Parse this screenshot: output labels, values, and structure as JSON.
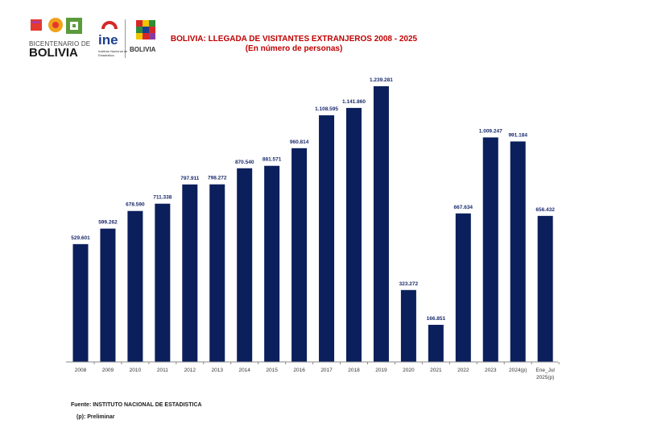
{
  "header": {
    "logo1_top": "BICENTENARIO DE",
    "logo1_bottom": "BOLIVIA",
    "logo2_name": "ine",
    "logo2_sub": "Instituto Nacional de Estadística",
    "logo3_text": "BOLIVIA"
  },
  "chart_data": {
    "type": "bar",
    "title": "BOLIVIA: LLEGADA DE VISITANTES EXTRANJEROS 2008 - 2025",
    "subtitle": "(En número de personas)",
    "categories": [
      "2008",
      "2009",
      "2010",
      "2011",
      "2012",
      "2013",
      "2014",
      "2015",
      "2016",
      "2017",
      "2018",
      "2019",
      "2020",
      "2021",
      "2022",
      "2023",
      "2024(p)",
      "Ene_Jul 2025(p)"
    ],
    "values": [
      529601,
      599262,
      678590,
      711338,
      797911,
      798272,
      870540,
      881571,
      960814,
      1108595,
      1141860,
      1239281,
      323272,
      166851,
      667634,
      1009247,
      991184,
      656432
    ],
    "data_labels": [
      "529.601",
      "599.262",
      "678.590",
      "711.338",
      "797.911",
      "798.272",
      "870.540",
      "881.571",
      "960.814",
      "1.108.595",
      "1.141.860",
      "1.239.281",
      "323.272",
      "166.851",
      "667.634",
      "1.009.247",
      "991.184",
      "656.432"
    ],
    "ylim": [
      0,
      1239281
    ],
    "grid": false,
    "legend": "none",
    "bar_color": "#0b1f5c",
    "label_color": "#1a2a6c"
  },
  "footer": {
    "source": "Fuente: INSTITUTO NACIONAL DE ESTADISTICA",
    "note": "(p): Preliminar"
  }
}
